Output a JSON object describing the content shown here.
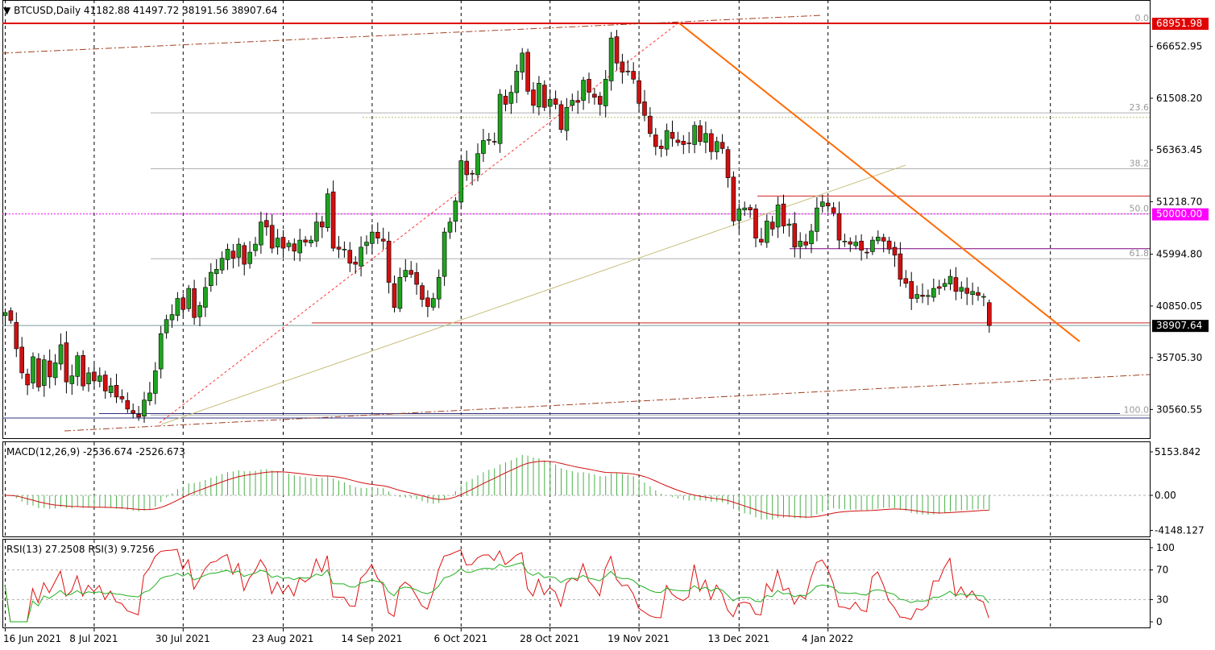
{
  "header": {
    "main": "BTCUSD,Daily  41182.88 41497.72 38191.56 38907.64",
    "macd": "MACD(12,26,9) -2536.674 -2526.673",
    "rsi": "RSI(13) 27.2508  RSI(3) 9.7256"
  },
  "chart_data": {
    "type": "candlestick",
    "symbol": "BTCUSD",
    "timeframe": "Daily",
    "last_ohlc": {
      "open": 41182.88,
      "high": 41497.72,
      "low": 38191.56,
      "close": 38907.64
    },
    "price_ticks": [
      "66652.95",
      "61508.20",
      "56363.45",
      "51218.70",
      "45994.80",
      "40850.05",
      "35705.30",
      "30560.55"
    ],
    "price_tick_values": [
      66652.95,
      61508.2,
      56363.45,
      51218.7,
      45994.8,
      40850.05,
      35705.3,
      30560.55
    ],
    "price_labels": [
      {
        "text": "68951.98",
        "value": 68951.98,
        "bg": "#e00000"
      },
      {
        "text": "50000.00",
        "value": 50000.0,
        "bg": "#ff00ff"
      },
      {
        "text": "38907.64",
        "value": 38907.64,
        "bg": "#000000"
      }
    ],
    "x_labels": [
      {
        "text": "16 Jun 2021",
        "idx": 0
      },
      {
        "text": "8 Jul 2021",
        "idx": 16
      },
      {
        "text": "30 Jul 2021",
        "idx": 32
      },
      {
        "text": "23 Aug 2021",
        "idx": 50
      },
      {
        "text": "14 Sep 2021",
        "idx": 66
      },
      {
        "text": "6 Oct 2021",
        "idx": 82
      },
      {
        "text": "28 Oct 2021",
        "idx": 98
      },
      {
        "text": "19 Nov 2021",
        "idx": 114
      },
      {
        "text": "13 Dec 2021",
        "idx": 132
      },
      {
        "text": "4 Jan 2022",
        "idx": 148
      }
    ],
    "fib_levels": [
      "0.0",
      "23.6",
      "38.2",
      "50.0",
      "61.8",
      "100.0"
    ],
    "fib_values": [
      68951.98,
      60050,
      54500,
      50000,
      45550,
      30000
    ],
    "closes": [
      40200,
      39400,
      36600,
      34200,
      33000,
      35800,
      32800,
      35500,
      33800,
      35200,
      37000,
      33300,
      33900,
      35900,
      32900,
      34200,
      33400,
      33900,
      32400,
      32900,
      31800,
      31600,
      30600,
      30200,
      29800,
      31500,
      32200,
      34400,
      38100,
      39500,
      40000,
      41600,
      40500,
      42600,
      39700,
      40900,
      42700,
      44200,
      44500,
      45600,
      46500,
      45600,
      47000,
      45000,
      46200,
      47000,
      49200,
      48700,
      46600,
      47600,
      46600,
      47100,
      46300,
      47400,
      47200,
      47400,
      49200,
      48700,
      52000,
      46600,
      46500,
      46500,
      45100,
      45000,
      46700,
      47200,
      48200,
      47600,
      47300,
      43200,
      40700,
      43700,
      44400,
      44000,
      43000,
      41500,
      40800,
      41600,
      43700,
      48200,
      49200,
      51300,
      55300,
      53900,
      54000,
      56000,
      57300,
      57400,
      57200,
      61900,
      60900,
      62100,
      64200,
      66000,
      62200,
      60800,
      63000,
      60600,
      61400,
      60900,
      58400,
      60600,
      61300,
      61100,
      63300,
      62100,
      61600,
      60900,
      63400,
      67500,
      65000,
      64100,
      64200,
      63400,
      61000,
      59800,
      58000,
      56700,
      56500,
      58300,
      57500,
      57100,
      56900,
      57000,
      58800,
      57200,
      58000,
      56200,
      57200,
      56500,
      53600,
      49300,
      50500,
      50600,
      50400,
      47600,
      47200,
      49300,
      48500,
      50900,
      48800,
      49000,
      46700,
      47300,
      46900,
      48300,
      50600,
      51200,
      50800,
      50100,
      47400,
      47300,
      47000,
      47200,
      46400,
      46200,
      47400,
      47700,
      47300,
      46500,
      45900,
      43500,
      43100,
      41600,
      42000,
      41800,
      41900,
      42600,
      42600,
      43100,
      43800,
      42300,
      42700,
      42100,
      42300,
      41900,
      41800,
      38900
    ],
    "indicators": {
      "macd_ticks": [
        "5153.842",
        "0.00",
        "-4148.127"
      ],
      "macd_tick_values": [
        5153.842,
        0,
        -4148.127
      ],
      "macd_last": -2536.674,
      "signal_last": -2526.673,
      "rsi_ticks": [
        "100",
        "70",
        "30",
        "0"
      ],
      "rsi_tick_values": [
        100,
        70,
        30,
        0
      ],
      "rsi13_last": 27.2508,
      "rsi3_last": 9.7256
    }
  }
}
